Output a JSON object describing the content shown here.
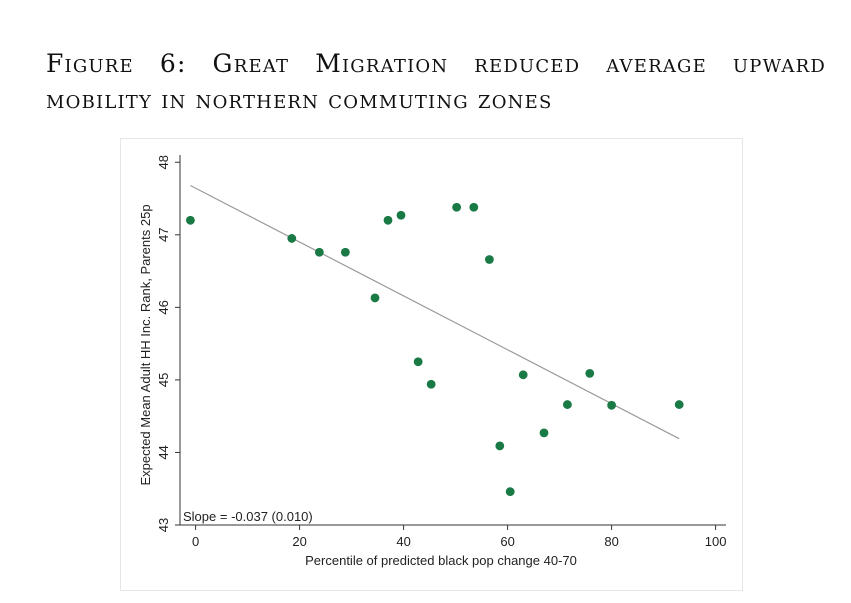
{
  "figure": {
    "title": "Figure 6: Great Migration reduced average upward mobility in northern commuting zones"
  },
  "chart_data": {
    "type": "scatter",
    "xlabel": "Percentile of predicted black pop change 40-70",
    "ylabel": "Expected Mean Adult HH Inc. Rank, Parents 25p",
    "xlim": [
      -3,
      102
    ],
    "ylim": [
      43,
      48.1
    ],
    "x_ticks": [
      0,
      20,
      40,
      60,
      80,
      100
    ],
    "y_ticks": [
      43,
      44,
      45,
      46,
      47,
      48
    ],
    "grid": false,
    "annotation": "Slope = -0.037 (0.010)",
    "point_color": "#1a7a45",
    "fit_line_color": "#9a9a9a",
    "fit_line": {
      "x": [
        -1,
        93
      ],
      "y": [
        47.68,
        44.19
      ]
    },
    "points": [
      {
        "x": -1,
        "y": 47.2
      },
      {
        "x": 18.5,
        "y": 46.95
      },
      {
        "x": 23.8,
        "y": 46.76
      },
      {
        "x": 28.8,
        "y": 46.76
      },
      {
        "x": 34.5,
        "y": 46.13
      },
      {
        "x": 37,
        "y": 47.2
      },
      {
        "x": 39.5,
        "y": 47.27
      },
      {
        "x": 42.8,
        "y": 45.25
      },
      {
        "x": 45.3,
        "y": 44.94
      },
      {
        "x": 50.2,
        "y": 47.38
      },
      {
        "x": 53.5,
        "y": 47.38
      },
      {
        "x": 56.5,
        "y": 46.66
      },
      {
        "x": 58.5,
        "y": 44.09
      },
      {
        "x": 60.5,
        "y": 43.46
      },
      {
        "x": 63,
        "y": 45.07
      },
      {
        "x": 67,
        "y": 44.27
      },
      {
        "x": 71.5,
        "y": 44.66
      },
      {
        "x": 75.8,
        "y": 45.09
      },
      {
        "x": 80,
        "y": 44.65
      },
      {
        "x": 93,
        "y": 44.66
      }
    ]
  }
}
